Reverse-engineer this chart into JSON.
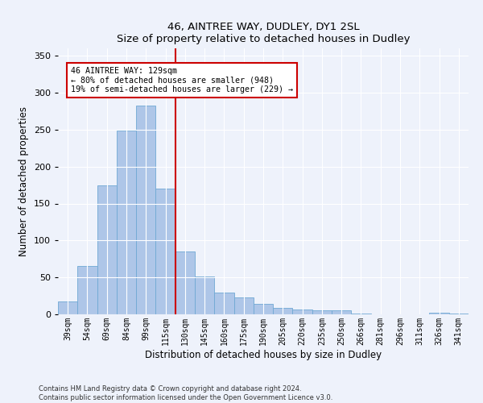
{
  "title1": "46, AINTREE WAY, DUDLEY, DY1 2SL",
  "title2": "Size of property relative to detached houses in Dudley",
  "xlabel": "Distribution of detached houses by size in Dudley",
  "ylabel": "Number of detached properties",
  "categories": [
    "39sqm",
    "54sqm",
    "69sqm",
    "84sqm",
    "99sqm",
    "115sqm",
    "130sqm",
    "145sqm",
    "160sqm",
    "175sqm",
    "190sqm",
    "205sqm",
    "220sqm",
    "235sqm",
    "250sqm",
    "266sqm",
    "281sqm",
    "296sqm",
    "311sqm",
    "326sqm",
    "341sqm"
  ],
  "values": [
    18,
    66,
    175,
    249,
    283,
    170,
    85,
    51,
    30,
    23,
    14,
    9,
    7,
    5,
    5,
    1,
    0,
    0,
    0,
    2,
    1
  ],
  "bar_color": "#aec6e8",
  "bar_edge_color": "#6fa8d4",
  "vline_color": "#cc0000",
  "annotation_text": "46 AINTREE WAY: 129sqm\n← 80% of detached houses are smaller (948)\n19% of semi-detached houses are larger (229) →",
  "annotation_box_color": "#ffffff",
  "annotation_box_edge": "#cc0000",
  "ylim": [
    0,
    360
  ],
  "yticks": [
    0,
    50,
    100,
    150,
    200,
    250,
    300,
    350
  ],
  "background_color": "#eef2fb",
  "grid_color": "#ffffff",
  "footer1": "Contains HM Land Registry data © Crown copyright and database right 2024.",
  "footer2": "Contains public sector information licensed under the Open Government Licence v3.0."
}
